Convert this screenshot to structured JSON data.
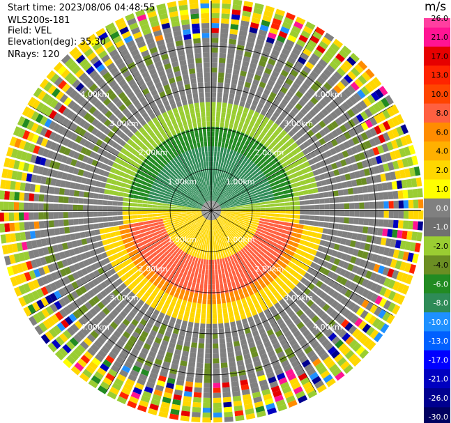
{
  "header": {
    "start_time": "Start time: 2023/08/06 04:48:55",
    "instrument": "WLS200s-181",
    "field": "Field: VEL",
    "elevation": "Elevation(deg): 35.30",
    "nrays": "NRays: 120"
  },
  "colorbar": {
    "unit": "m/s",
    "ticks": [
      "26.0",
      "21.0",
      "17.0",
      "13.0",
      "10.0",
      "8.0",
      "6.0",
      "4.0",
      "2.0",
      "1.0",
      "0.0",
      "-1.0",
      "-2.0",
      "-4.0",
      "-6.0",
      "-8.0",
      "-10.0",
      "-13.0",
      "-17.0",
      "-21.0",
      "-26.0",
      "-30.0"
    ],
    "colors": [
      "#ff3fa0",
      "#ff1493",
      "#e60000",
      "#ff2400",
      "#ff4500",
      "#ff6040",
      "#ff8c00",
      "#ffb000",
      "#ffd700",
      "#ffff00",
      "#808080",
      "#707070",
      "#9acd32",
      "#6b8e23",
      "#228b22",
      "#2e8b57",
      "#1e90ff",
      "#0060ff",
      "#0000ff",
      "#0000c0",
      "#000090",
      "#000060"
    ]
  },
  "chart_data": {
    "type": "heatmap",
    "projection": "polar PPI",
    "field": "VEL",
    "unit": "m/s",
    "nrays": 120,
    "range_rings_km": [
      1.0,
      2.0,
      3.0,
      4.0
    ],
    "ring_labels": [
      "1.00km",
      "2.00km",
      "3.00km",
      "4.00km"
    ],
    "max_range_km": 5.0,
    "clim": [
      -30.0,
      26.0
    ],
    "description_of_pattern": {
      "near_north": "green (approx -4 to -8 m/s, inbound)",
      "near_south": "yellow/orange (approx 2 to 8 m/s, outbound)",
      "far_range": "noisy mixed values"
    }
  }
}
